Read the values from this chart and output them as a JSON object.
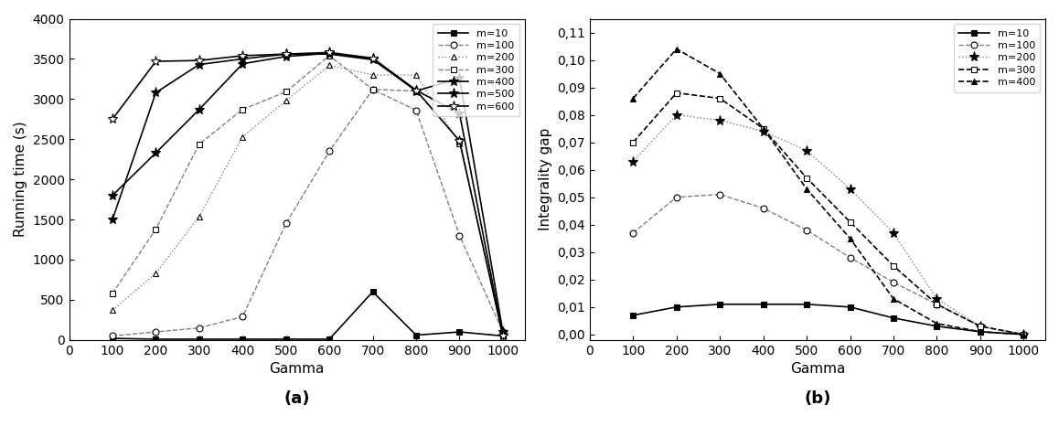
{
  "gamma": [
    100,
    200,
    300,
    400,
    500,
    600,
    700,
    800,
    900,
    1000
  ],
  "plot_a": {
    "m10": [
      20,
      10,
      10,
      10,
      10,
      10,
      600,
      60,
      100,
      50
    ],
    "m100": [
      50,
      100,
      150,
      290,
      1450,
      2350,
      3120,
      2860,
      1300,
      100
    ],
    "m200": [
      370,
      830,
      1540,
      2530,
      2980,
      3420,
      3300,
      3300,
      2450,
      100
    ],
    "m300": [
      580,
      1380,
      2440,
      2870,
      3090,
      3540,
      3120,
      3100,
      2480,
      50
    ],
    "m400": [
      1800,
      2330,
      2870,
      3440,
      3530,
      3570,
      3500,
      3100,
      3260,
      100
    ],
    "m500": [
      1500,
      3080,
      3430,
      3500,
      3560,
      3560,
      3490,
      3110,
      2820,
      50
    ],
    "m600": [
      2750,
      3470,
      3480,
      3540,
      3560,
      3580,
      3510,
      3110,
      2480,
      50
    ]
  },
  "plot_b": {
    "m10": [
      0.007,
      0.01,
      0.011,
      0.011,
      0.011,
      0.01,
      0.006,
      0.003,
      0.001,
      0.0
    ],
    "m100": [
      0.037,
      0.05,
      0.051,
      0.046,
      0.038,
      0.028,
      0.019,
      0.011,
      0.003,
      0.0
    ],
    "m200": [
      0.063,
      0.08,
      0.078,
      0.074,
      0.067,
      0.053,
      0.037,
      0.013,
      0.003,
      0.0
    ],
    "m300": [
      0.07,
      0.088,
      0.086,
      0.075,
      0.057,
      0.041,
      0.025,
      0.011,
      0.003,
      0.0
    ],
    "m400": [
      0.086,
      0.104,
      0.095,
      0.075,
      0.053,
      0.035,
      0.013,
      0.004,
      0.001,
      0.0
    ]
  },
  "title_a": "(a)",
  "title_b": "(b)",
  "xlabel": "Gamma",
  "ylabel_a": "Running time (s)",
  "ylabel_b": "Integrality gap",
  "ylim_a": [
    0,
    4000
  ],
  "ylim_b": [
    0,
    0.11
  ],
  "yticks_a": [
    0,
    500,
    1000,
    1500,
    2000,
    2500,
    3000,
    3500,
    4000
  ],
  "yticks_b": [
    0.0,
    0.01,
    0.02,
    0.03,
    0.04,
    0.05,
    0.06,
    0.07,
    0.08,
    0.09,
    0.1,
    0.11
  ],
  "xticks": [
    0,
    100,
    200,
    300,
    400,
    500,
    600,
    700,
    800,
    900,
    1000
  ],
  "styles_a": [
    {
      "label": "m=10",
      "marker": "s",
      "ls": "-",
      "ms": 5,
      "mfc": "black",
      "lw": 1.2,
      "color": "black"
    },
    {
      "label": "m=100",
      "marker": "o",
      "ls": "--",
      "ms": 5,
      "mfc": "white",
      "lw": 1.0,
      "color": "gray"
    },
    {
      "label": "m=200",
      "marker": "^",
      "ls": ":",
      "ms": 5,
      "mfc": "white",
      "lw": 1.0,
      "color": "gray"
    },
    {
      "label": "m=300",
      "marker": "s",
      "ls": "--",
      "ms": 5,
      "mfc": "white",
      "lw": 1.0,
      "color": "gray"
    },
    {
      "label": "m=400",
      "marker": "*",
      "ls": "-",
      "ms": 8,
      "mfc": "black",
      "lw": 1.2,
      "color": "black"
    },
    {
      "label": "m=500",
      "marker": "*",
      "ls": "-",
      "ms": 8,
      "mfc": "black",
      "lw": 1.2,
      "color": "black"
    },
    {
      "label": "m=600",
      "marker": "*",
      "ls": "-",
      "ms": 8,
      "mfc": "white",
      "lw": 1.2,
      "color": "black"
    }
  ],
  "styles_b": [
    {
      "label": "m=10",
      "marker": "s",
      "ls": "-",
      "ms": 5,
      "mfc": "black",
      "lw": 1.2,
      "color": "black"
    },
    {
      "label": "m=100",
      "marker": "o",
      "ls": "--",
      "ms": 5,
      "mfc": "white",
      "lw": 1.0,
      "color": "gray"
    },
    {
      "label": "m=200",
      "marker": "*",
      "ls": ":",
      "ms": 8,
      "mfc": "black",
      "lw": 1.0,
      "color": "gray"
    },
    {
      "label": "m=300",
      "marker": "s",
      "ls": "--",
      "ms": 5,
      "mfc": "white",
      "lw": 1.2,
      "color": "black"
    },
    {
      "label": "m=400",
      "marker": "^",
      "ls": "--",
      "ms": 5,
      "mfc": "black",
      "lw": 1.2,
      "color": "black"
    }
  ]
}
